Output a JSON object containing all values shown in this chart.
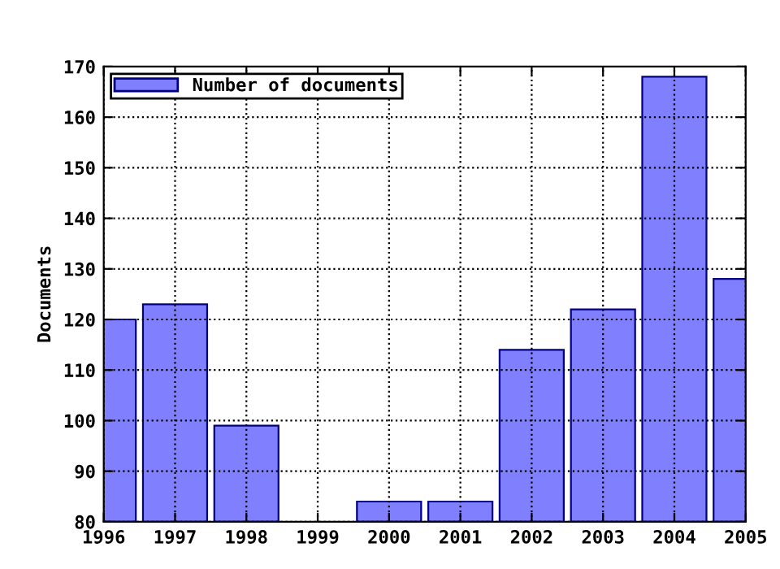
{
  "chart_data": {
    "type": "bar",
    "ylabel": "Documents",
    "x": [
      1996,
      1997,
      1998,
      1999,
      2000,
      2001,
      2002,
      2003,
      2004,
      2005
    ],
    "series": [
      {
        "name": "Number of documents",
        "color": "#8080ff",
        "values": [
          120,
          123,
          99,
          null,
          84,
          84,
          114,
          122,
          168,
          128
        ]
      }
    ],
    "xlim": [
      1996,
      2005
    ],
    "xticks": [
      1996,
      1997,
      1998,
      1999,
      2000,
      2001,
      2002,
      2003,
      2004,
      2005
    ],
    "ylim": [
      80,
      170
    ],
    "yticks": [
      80,
      90,
      100,
      110,
      120,
      130,
      140,
      150,
      160,
      170
    ],
    "grid": true,
    "line_style": "dotted",
    "legend": "top left"
  }
}
